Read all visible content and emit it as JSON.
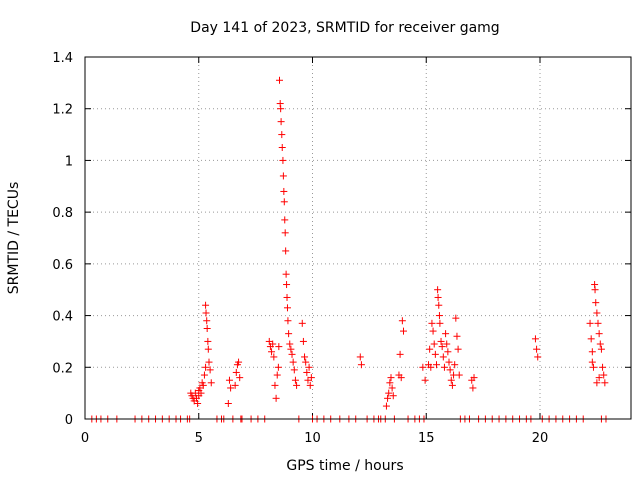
{
  "chart_data": {
    "type": "scatter",
    "title": "Day 141 of 2023, SRMTID for receiver gamg",
    "xlabel": "GPS time / hours",
    "ylabel": "SRMTID / TECUs",
    "xlim": [
      0,
      24
    ],
    "ylim": [
      0,
      1.4
    ],
    "xticks": [
      0,
      5,
      10,
      15,
      20
    ],
    "yticks": [
      0,
      0.2,
      0.4,
      0.6,
      0.8,
      1.0,
      1.2,
      1.4
    ],
    "xtick_labels": [
      "0",
      "5",
      "10",
      "15",
      "20"
    ],
    "ytick_labels": [
      "0",
      "0.2",
      "0.4",
      "0.6",
      "0.8",
      "1",
      "1.2",
      "1.4"
    ],
    "grid": true,
    "marker": "plus",
    "color": "#ff0000",
    "series": [
      {
        "points": [
          [
            0.3,
            0
          ],
          [
            0.5,
            0
          ],
          [
            0.7,
            0
          ],
          [
            1.0,
            0
          ],
          [
            1.4,
            0
          ],
          [
            2.2,
            0
          ],
          [
            2.5,
            0
          ],
          [
            2.8,
            0
          ],
          [
            3.1,
            0
          ],
          [
            3.4,
            0
          ],
          [
            3.7,
            0
          ],
          [
            4.0,
            0
          ],
          [
            4.2,
            0
          ],
          [
            4.5,
            0
          ],
          [
            4.6,
            0
          ],
          [
            4.65,
            0.1
          ],
          [
            4.7,
            0.09
          ],
          [
            4.75,
            0.08
          ],
          [
            4.8,
            0.07
          ],
          [
            4.85,
            0.1
          ],
          [
            4.9,
            0.08
          ],
          [
            4.95,
            0.06
          ],
          [
            5.0,
            0.09
          ],
          [
            5.0,
            0.11
          ],
          [
            5.05,
            0.12
          ],
          [
            5.1,
            0.1
          ],
          [
            5.15,
            0.14
          ],
          [
            5.2,
            0.13
          ],
          [
            5.25,
            0.17
          ],
          [
            5.3,
            0.2
          ],
          [
            5.3,
            0.44
          ],
          [
            5.32,
            0.41
          ],
          [
            5.35,
            0.38
          ],
          [
            5.37,
            0.35
          ],
          [
            5.4,
            0.3
          ],
          [
            5.42,
            0.27
          ],
          [
            5.45,
            0.22
          ],
          [
            5.5,
            0.19
          ],
          [
            5.55,
            0.14
          ],
          [
            5.8,
            0
          ],
          [
            6.0,
            0
          ],
          [
            6.1,
            0
          ],
          [
            6.3,
            0.06
          ],
          [
            6.35,
            0.15
          ],
          [
            6.4,
            0.12
          ],
          [
            6.5,
            0
          ],
          [
            6.6,
            0.13
          ],
          [
            6.65,
            0.18
          ],
          [
            6.7,
            0.21
          ],
          [
            6.75,
            0.22
          ],
          [
            6.8,
            0.16
          ],
          [
            6.85,
            0
          ],
          [
            6.9,
            0
          ],
          [
            7.3,
            0
          ],
          [
            7.6,
            0
          ],
          [
            7.9,
            0
          ],
          [
            8.1,
            0.3
          ],
          [
            8.15,
            0.28
          ],
          [
            8.2,
            0.26
          ],
          [
            8.25,
            0.29
          ],
          [
            8.3,
            0.24
          ],
          [
            8.35,
            0.13
          ],
          [
            8.4,
            0.08
          ],
          [
            8.45,
            0.17
          ],
          [
            8.5,
            0.2
          ],
          [
            8.52,
            0.28
          ],
          [
            8.55,
            1.31
          ],
          [
            8.58,
            1.22
          ],
          [
            8.6,
            1.2
          ],
          [
            8.62,
            1.15
          ],
          [
            8.65,
            1.1
          ],
          [
            8.67,
            1.05
          ],
          [
            8.7,
            1.0
          ],
          [
            8.72,
            0.94
          ],
          [
            8.74,
            0.88
          ],
          [
            8.76,
            0.84
          ],
          [
            8.78,
            0.77
          ],
          [
            8.8,
            0.72
          ],
          [
            8.82,
            0.65
          ],
          [
            8.84,
            0.56
          ],
          [
            8.86,
            0.52
          ],
          [
            8.88,
            0.47
          ],
          [
            8.9,
            0.43
          ],
          [
            8.92,
            0.38
          ],
          [
            8.95,
            0.33
          ],
          [
            9.0,
            0.29
          ],
          [
            9.05,
            0.27
          ],
          [
            9.1,
            0.25
          ],
          [
            9.15,
            0.22
          ],
          [
            9.2,
            0.19
          ],
          [
            9.25,
            0.15
          ],
          [
            9.3,
            0.13
          ],
          [
            9.4,
            0
          ],
          [
            9.55,
            0.37
          ],
          [
            9.6,
            0.3
          ],
          [
            9.65,
            0.24
          ],
          [
            9.7,
            0.22
          ],
          [
            9.75,
            0.18
          ],
          [
            9.8,
            0.15
          ],
          [
            9.85,
            0.2
          ],
          [
            9.9,
            0.13
          ],
          [
            9.95,
            0.16
          ],
          [
            10.0,
            0
          ],
          [
            10.2,
            0
          ],
          [
            10.5,
            0
          ],
          [
            10.8,
            0
          ],
          [
            11.2,
            0
          ],
          [
            11.6,
            0
          ],
          [
            11.9,
            0
          ],
          [
            12.1,
            0.24
          ],
          [
            12.15,
            0.21
          ],
          [
            12.4,
            0
          ],
          [
            12.7,
            0
          ],
          [
            12.9,
            0
          ],
          [
            13.0,
            0
          ],
          [
            13.2,
            0
          ],
          [
            13.25,
            0.05
          ],
          [
            13.3,
            0.08
          ],
          [
            13.35,
            0.1
          ],
          [
            13.4,
            0.14
          ],
          [
            13.45,
            0.16
          ],
          [
            13.5,
            0.12
          ],
          [
            13.55,
            0.09
          ],
          [
            13.6,
            0
          ],
          [
            13.8,
            0.17
          ],
          [
            13.85,
            0.25
          ],
          [
            13.9,
            0.16
          ],
          [
            13.95,
            0.38
          ],
          [
            14.0,
            0.34
          ],
          [
            14.2,
            0
          ],
          [
            14.5,
            0
          ],
          [
            14.7,
            0
          ],
          [
            14.9,
            0
          ],
          [
            14.85,
            0.2
          ],
          [
            14.95,
            0.15
          ],
          [
            15.1,
            0.21
          ],
          [
            15.15,
            0.27
          ],
          [
            15.2,
            0.2
          ],
          [
            15.25,
            0.37
          ],
          [
            15.3,
            0.34
          ],
          [
            15.35,
            0.29
          ],
          [
            15.4,
            0.25
          ],
          [
            15.45,
            0.21
          ],
          [
            15.5,
            0.5
          ],
          [
            15.52,
            0.47
          ],
          [
            15.55,
            0.44
          ],
          [
            15.58,
            0.4
          ],
          [
            15.6,
            0.37
          ],
          [
            15.65,
            0.3
          ],
          [
            15.7,
            0.28
          ],
          [
            15.75,
            0.24
          ],
          [
            15.8,
            0.2
          ],
          [
            15.85,
            0.33
          ],
          [
            15.9,
            0.29
          ],
          [
            15.95,
            0.26
          ],
          [
            16.0,
            0.22
          ],
          [
            16.05,
            0.19
          ],
          [
            16.1,
            0.15
          ],
          [
            16.15,
            0.13
          ],
          [
            16.2,
            0.17
          ],
          [
            16.25,
            0.21
          ],
          [
            16.3,
            0.39
          ],
          [
            16.35,
            0.32
          ],
          [
            16.4,
            0.27
          ],
          [
            16.45,
            0.17
          ],
          [
            16.5,
            0
          ],
          [
            16.7,
            0
          ],
          [
            16.9,
            0
          ],
          [
            17.0,
            0.15
          ],
          [
            17.05,
            0.12
          ],
          [
            17.1,
            0.16
          ],
          [
            17.3,
            0
          ],
          [
            17.6,
            0
          ],
          [
            17.9,
            0
          ],
          [
            18.2,
            0
          ],
          [
            18.5,
            0
          ],
          [
            18.8,
            0
          ],
          [
            19.1,
            0
          ],
          [
            19.4,
            0
          ],
          [
            19.6,
            0
          ],
          [
            19.8,
            0.31
          ],
          [
            19.85,
            0.27
          ],
          [
            19.9,
            0.24
          ],
          [
            20.1,
            0
          ],
          [
            20.4,
            0
          ],
          [
            20.7,
            0
          ],
          [
            21.0,
            0
          ],
          [
            21.3,
            0
          ],
          [
            21.6,
            0
          ],
          [
            21.9,
            0
          ],
          [
            22.2,
            0.37
          ],
          [
            22.25,
            0.31
          ],
          [
            22.3,
            0.26
          ],
          [
            22.35,
            0.2
          ],
          [
            22.4,
            0.52
          ],
          [
            22.42,
            0.5
          ],
          [
            22.45,
            0.45
          ],
          [
            22.5,
            0.41
          ],
          [
            22.55,
            0.37
          ],
          [
            22.6,
            0.33
          ],
          [
            22.65,
            0.29
          ],
          [
            22.7,
            0.27
          ],
          [
            22.75,
            0.2
          ],
          [
            22.8,
            0.17
          ],
          [
            22.85,
            0.14
          ],
          [
            22.6,
            0.16
          ],
          [
            22.5,
            0.14
          ],
          [
            22.3,
            0.22
          ],
          [
            22.7,
            0.0
          ],
          [
            22.9,
            0
          ]
        ]
      }
    ]
  }
}
